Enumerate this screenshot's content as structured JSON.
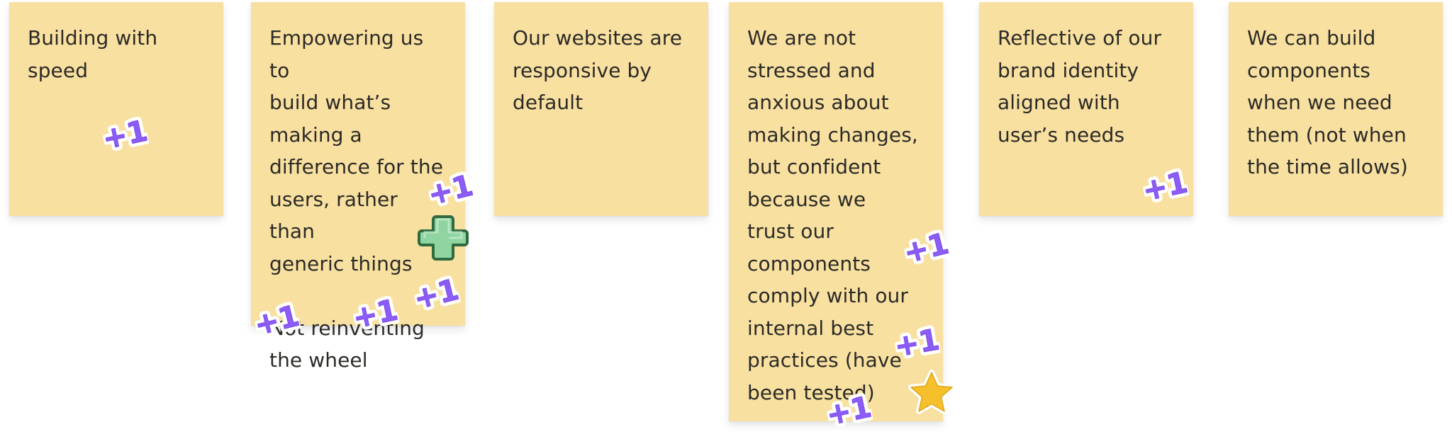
{
  "board": {
    "notes": [
      {
        "text": "Building with\nspeed"
      },
      {
        "text": "Empowering us to\nbuild what’s\nmaking a\ndifference for the\nusers, rather than\ngeneric things",
        "text2": "Not reinventing\nthe wheel"
      },
      {
        "text": "Our websites are\nresponsive by\ndefault"
      },
      {
        "text": "We are not\nstressed and\nanxious about\nmaking changes,\nbut confident\nbecause we\ntrust our\ncomponents\ncomply with our\ninternal best\npractices (have\nbeen tested)"
      },
      {
        "text": "Reflective of our\nbrand identity\naligned with\nuser’s needs"
      },
      {
        "text": "We can build\ncomponents\nwhen we need\nthem (not when\nthe time allows)"
      }
    ],
    "sticker_label": "+1",
    "sticker_icons": {
      "plus_one": "plus-one-sticker-icon",
      "plus": "green-plus-sticker-icon",
      "star": "star-sticker-icon"
    },
    "colors": {
      "note_bg": "#f8e0a1",
      "text": "#2b2a26",
      "plus_one": "#8b5cf6",
      "green_plus": "#8fd4a1",
      "star": "#f5c02b"
    }
  }
}
